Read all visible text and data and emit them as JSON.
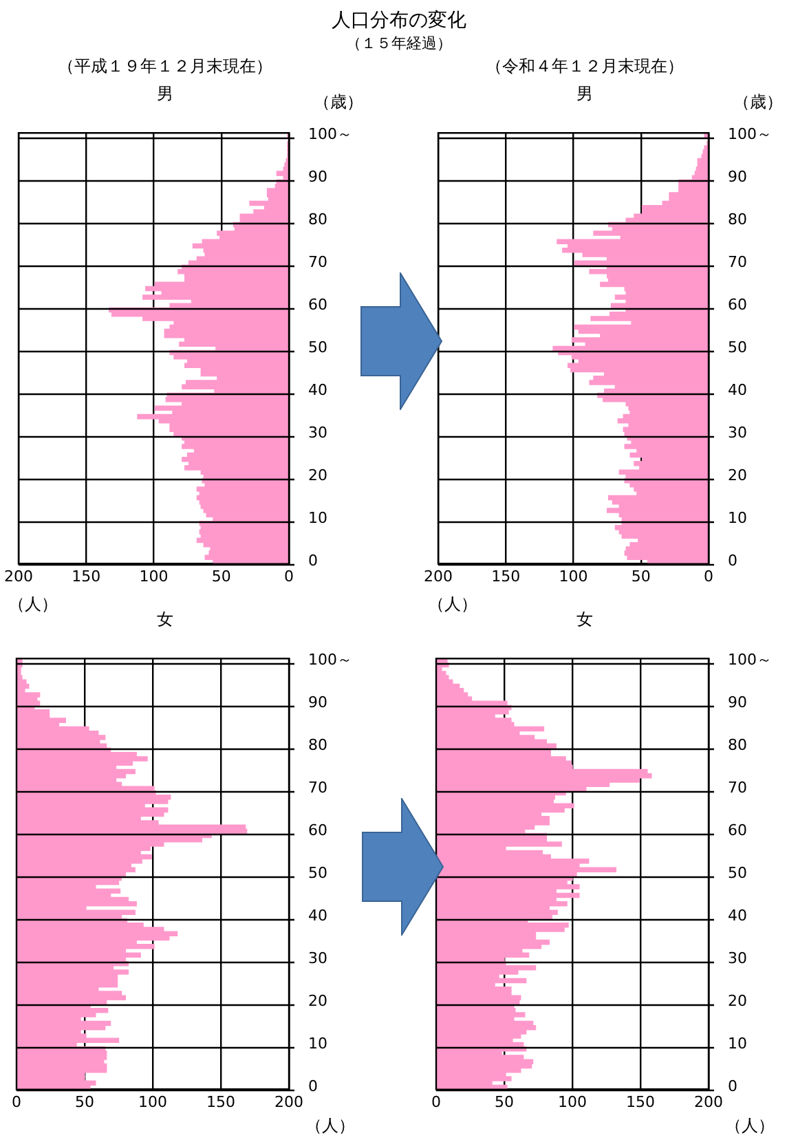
{
  "chart_data": [
    {
      "type": "other",
      "title": "人口分布の変化",
      "subtitle": "（１５年経過）"
    },
    {
      "type": "bar",
      "orientation": "horizontal",
      "subtitle": "（平成１９年１２月末現在）",
      "title": "男",
      "xlabel": "（人）",
      "ylabel": "（歳）",
      "color": "#ff99cc",
      "xlim": [
        200,
        0
      ],
      "xticks": [
        200,
        150,
        100,
        50,
        0
      ],
      "grid": true,
      "categories": [
        "100～",
        null,
        null,
        null,
        null,
        null,
        null,
        null,
        null,
        null,
        "90",
        null,
        null,
        null,
        null,
        null,
        null,
        null,
        null,
        null,
        "80",
        null,
        null,
        null,
        null,
        null,
        null,
        null,
        null,
        null,
        "70",
        null,
        null,
        null,
        null,
        null,
        null,
        null,
        null,
        null,
        "60",
        null,
        null,
        null,
        null,
        null,
        null,
        null,
        null,
        null,
        "50",
        null,
        null,
        null,
        null,
        null,
        null,
        null,
        null,
        null,
        "40",
        null,
        null,
        null,
        null,
        null,
        null,
        null,
        null,
        null,
        "30",
        null,
        null,
        null,
        null,
        null,
        null,
        null,
        null,
        null,
        "20",
        null,
        null,
        null,
        null,
        null,
        null,
        null,
        null,
        null,
        "10",
        null,
        null,
        null,
        null,
        null,
        null,
        null,
        null,
        null,
        "0"
      ],
      "values": [
        1,
        0,
        1,
        1,
        1,
        1,
        2,
        3,
        4,
        9,
        4,
        9,
        10,
        16,
        16,
        15,
        29,
        18,
        26,
        36,
        36,
        41,
        40,
        53,
        51,
        64,
        71,
        63,
        62,
        68,
        74,
        79,
        82,
        77,
        77,
        99,
        106,
        94,
        108,
        72,
        88,
        133,
        131,
        108,
        85,
        88,
        92,
        92,
        77,
        81,
        54,
        88,
        85,
        75,
        77,
        65,
        65,
        53,
        76,
        79,
        55,
        90,
        91,
        79,
        99,
        86,
        112,
        96,
        88,
        88,
        85,
        79,
        77,
        79,
        70,
        75,
        79,
        74,
        77,
        65,
        63,
        64,
        62,
        68,
        66,
        68,
        66,
        65,
        63,
        61,
        56,
        66,
        65,
        66,
        65,
        68,
        63,
        58,
        59,
        62,
        56
      ]
    },
    {
      "type": "bar",
      "orientation": "horizontal",
      "subtitle": "（令和４年１２月末現在）",
      "title": "男",
      "xlabel": "（人）",
      "ylabel": "（歳）",
      "color": "#ff99cc",
      "xlim": [
        200,
        0
      ],
      "xticks": [
        200,
        150,
        100,
        50,
        0
      ],
      "grid": true,
      "categories": [
        "100～",
        null,
        null,
        null,
        null,
        null,
        null,
        null,
        null,
        null,
        "90",
        null,
        null,
        null,
        null,
        null,
        null,
        null,
        null,
        null,
        "80",
        null,
        null,
        null,
        null,
        null,
        null,
        null,
        null,
        null,
        "70",
        null,
        null,
        null,
        null,
        null,
        null,
        null,
        null,
        null,
        "60",
        null,
        null,
        null,
        null,
        null,
        null,
        null,
        null,
        null,
        "50",
        null,
        null,
        null,
        null,
        null,
        null,
        null,
        null,
        null,
        "40",
        null,
        null,
        null,
        null,
        null,
        null,
        null,
        null,
        null,
        "30",
        null,
        null,
        null,
        null,
        null,
        null,
        null,
        null,
        null,
        "20",
        null,
        null,
        null,
        null,
        null,
        null,
        null,
        null,
        null,
        "10",
        null,
        null,
        null,
        null,
        null,
        null,
        null,
        null,
        null,
        "0"
      ],
      "values": [
        3,
        null,
        1,
        3,
        4,
        5,
        8,
        8,
        9,
        10,
        12,
        22,
        22,
        22,
        29,
        29,
        34,
        49,
        49,
        55,
        61,
        74,
        71,
        85,
        65,
        112,
        104,
        108,
        93,
        75,
        99,
        75,
        88,
        75,
        74,
        80,
        62,
        61,
        69,
        61,
        72,
        61,
        73,
        87,
        57,
        99,
        96,
        80,
        101,
        91,
        115,
        111,
        101,
        96,
        104,
        102,
        77,
        85,
        88,
        69,
        77,
        82,
        78,
        61,
        59,
        58,
        63,
        67,
        59,
        63,
        62,
        60,
        57,
        62,
        53,
        58,
        49,
        55,
        51,
        66,
        61,
        62,
        58,
        55,
        53,
        74,
        71,
        66,
        75,
        66,
        64,
        64,
        69,
        66,
        64,
        52,
        58,
        61,
        62,
        60,
        45
      ]
    },
    {
      "type": "bar",
      "orientation": "horizontal",
      "title": "女",
      "xlabel": "（人）",
      "color": "#ff99cc",
      "xlim": [
        0,
        200
      ],
      "xticks": [
        0,
        50,
        100,
        150,
        200
      ],
      "grid": true,
      "categories": [
        "100～",
        null,
        null,
        null,
        null,
        null,
        null,
        null,
        null,
        null,
        "90",
        null,
        null,
        null,
        null,
        null,
        null,
        null,
        null,
        null,
        "80",
        null,
        null,
        null,
        null,
        null,
        null,
        null,
        null,
        null,
        "70",
        null,
        null,
        null,
        null,
        null,
        null,
        null,
        null,
        null,
        "60",
        null,
        null,
        null,
        null,
        null,
        null,
        null,
        null,
        null,
        "50",
        null,
        null,
        null,
        null,
        null,
        null,
        null,
        null,
        null,
        "40",
        null,
        null,
        null,
        null,
        null,
        null,
        null,
        null,
        null,
        "30",
        null,
        null,
        null,
        null,
        null,
        null,
        null,
        null,
        null,
        "20",
        null,
        null,
        null,
        null,
        null,
        null,
        null,
        null,
        null,
        "10",
        null,
        null,
        null,
        null,
        null,
        null,
        null,
        null,
        null,
        "0"
      ],
      "values": [
        4,
        4,
        3,
        3,
        4,
        7,
        9,
        6,
        17,
        15,
        17,
        13,
        24,
        24,
        36,
        31,
        53,
        60,
        65,
        61,
        66,
        69,
        88,
        96,
        85,
        73,
        87,
        80,
        73,
        77,
        101,
        102,
        113,
        111,
        94,
        111,
        108,
        91,
        104,
        168,
        169,
        143,
        136,
        108,
        98,
        91,
        99,
        92,
        84,
        87,
        80,
        77,
        75,
        58,
        76,
        69,
        82,
        88,
        51,
        87,
        77,
        81,
        93,
        108,
        118,
        112,
        88,
        101,
        80,
        91,
        80,
        82,
        71,
        82,
        74,
        74,
        74,
        60,
        77,
        80,
        66,
        54,
        67,
        58,
        47,
        69,
        65,
        47,
        51,
        75,
        44,
        65,
        66,
        66,
        64,
        66,
        66,
        50,
        50,
        58,
        54
      ]
    },
    {
      "type": "bar",
      "orientation": "horizontal",
      "title": "女",
      "xlabel": "（人）",
      "color": "#ff99cc",
      "xlim": [
        0,
        200
      ],
      "xticks": [
        0,
        50,
        100,
        150,
        200
      ],
      "grid": true,
      "categories": [
        "100～",
        null,
        null,
        null,
        null,
        null,
        null,
        null,
        null,
        null,
        "90",
        null,
        null,
        null,
        null,
        null,
        null,
        null,
        null,
        null,
        "80",
        null,
        null,
        null,
        null,
        null,
        null,
        null,
        null,
        null,
        "70",
        null,
        null,
        null,
        null,
        null,
        null,
        null,
        null,
        null,
        "60",
        null,
        null,
        null,
        null,
        null,
        null,
        null,
        null,
        null,
        "50",
        null,
        null,
        null,
        null,
        null,
        null,
        null,
        null,
        null,
        "40",
        null,
        null,
        null,
        null,
        null,
        null,
        null,
        null,
        null,
        "30",
        null,
        null,
        null,
        null,
        null,
        null,
        null,
        null,
        null,
        "20",
        null,
        null,
        null,
        null,
        null,
        null,
        null,
        null,
        null,
        "10",
        null,
        null,
        null,
        null,
        null,
        null,
        null,
        null,
        null,
        "0"
      ],
      "values": [
        8,
        9,
        4,
        7,
        9,
        12,
        17,
        20,
        23,
        26,
        52,
        55,
        53,
        43,
        55,
        57,
        79,
        61,
        72,
        81,
        88,
        84,
        84,
        95,
        99,
        100,
        155,
        158,
        149,
        127,
        110,
        95,
        87,
        86,
        101,
        94,
        77,
        83,
        83,
        72,
        65,
        81,
        81,
        92,
        51,
        78,
        84,
        112,
        105,
        132,
        103,
        100,
        96,
        105,
        88,
        105,
        88,
        96,
        83,
        89,
        85,
        67,
        97,
        94,
        73,
        73,
        83,
        77,
        63,
        68,
        50,
        51,
        73,
        60,
        46,
        66,
        43,
        55,
        55,
        62,
        61,
        57,
        58,
        65,
        57,
        71,
        73,
        66,
        62,
        56,
        64,
        66,
        48,
        64,
        71,
        70,
        62,
        51,
        55,
        41,
        52
      ]
    }
  ]
}
